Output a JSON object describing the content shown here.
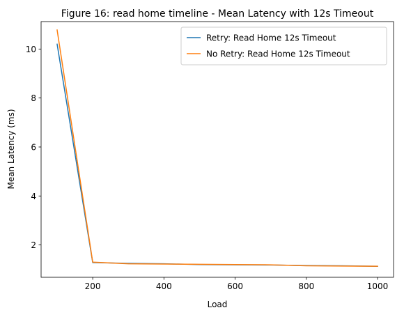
{
  "chart_data": {
    "type": "line",
    "title": "Figure 16: read home timeline - Mean Latency with 12s Timeout",
    "xlabel": "Load",
    "ylabel": "Mean Latency (ms)",
    "xlim": [
      55,
      1045
    ],
    "ylim": [
      0.68,
      11.12
    ],
    "xticks": [
      200,
      400,
      600,
      800,
      1000
    ],
    "yticks": [
      2,
      4,
      6,
      8,
      10
    ],
    "grid": false,
    "legend_position": "upper right",
    "x": [
      100,
      200,
      300,
      400,
      500,
      600,
      700,
      800,
      900,
      1000
    ],
    "series": [
      {
        "name": "Retry: Read Home 12s Timeout",
        "color": "#1f77b4",
        "values": [
          10.2,
          1.28,
          1.25,
          1.23,
          1.2,
          1.19,
          1.18,
          1.16,
          1.15,
          1.13
        ]
      },
      {
        "name": "No Retry: Read Home 12s Timeout",
        "color": "#ff7f0e",
        "values": [
          10.78,
          1.3,
          1.23,
          1.22,
          1.21,
          1.2,
          1.19,
          1.15,
          1.14,
          1.13
        ]
      }
    ]
  }
}
